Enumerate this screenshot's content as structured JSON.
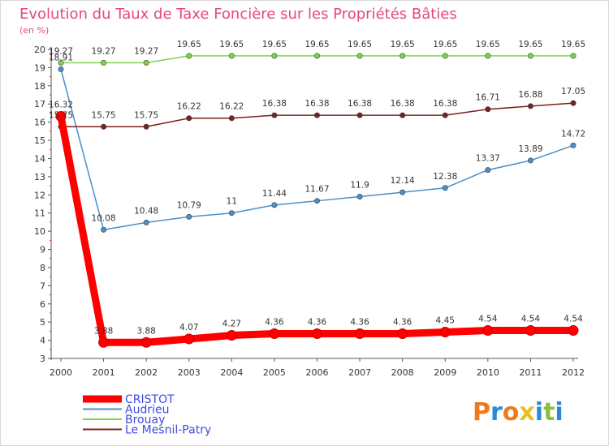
{
  "chart_data": {
    "type": "line",
    "title": "Evolution du Taux de Taxe Foncière sur les Propriétés Bâties",
    "unit_label": "(en %)",
    "xlabel": "",
    "ylabel": "",
    "x": [
      "2000",
      "2001",
      "2002",
      "2003",
      "2004",
      "2005",
      "2006",
      "2007",
      "2008",
      "2009",
      "2010",
      "2011",
      "2012"
    ],
    "ylim": [
      3,
      20
    ],
    "yticks": [
      3,
      4,
      5,
      6,
      7,
      8,
      9,
      10,
      11,
      12,
      13,
      14,
      15,
      16,
      17,
      18,
      19,
      20
    ],
    "grid": false,
    "legend_position": "bottom-left",
    "series": [
      {
        "name": "CRISTOT",
        "color": "#ff0000",
        "values": [
          16.32,
          3.88,
          3.88,
          4.07,
          4.27,
          4.36,
          4.36,
          4.36,
          4.36,
          4.45,
          4.54,
          4.54,
          4.54
        ],
        "labels": [
          "16.32",
          "3.88",
          "3.88",
          "4.07",
          "4.27",
          "4.36",
          "4.36",
          "4.36",
          "4.36",
          "4.45",
          "4.54",
          "4.54",
          "4.54"
        ]
      },
      {
        "name": "Audrieu",
        "color": "#4a8fc8",
        "values": [
          18.91,
          10.08,
          10.48,
          10.79,
          11,
          11.44,
          11.67,
          11.9,
          12.14,
          12.38,
          13.37,
          13.89,
          14.72
        ],
        "labels": [
          "18.91",
          "10.08",
          "10.48",
          "10.79",
          "11",
          "11.44",
          "11.67",
          "11.9",
          "12.14",
          "12.38",
          "13.37",
          "13.89",
          "14.72"
        ]
      },
      {
        "name": "Brouay",
        "color": "#7ed34a",
        "values": [
          19.27,
          19.27,
          19.27,
          19.65,
          19.65,
          19.65,
          19.65,
          19.65,
          19.65,
          19.65,
          19.65,
          19.65,
          19.65
        ],
        "labels": [
          "19.27",
          "19.27",
          "19.27",
          "19.65",
          "19.65",
          "19.65",
          "19.65",
          "19.65",
          "19.65",
          "19.65",
          "19.65",
          "19.65",
          "19.65"
        ]
      },
      {
        "name": "Le Mesnil-Patry",
        "color": "#7a2020",
        "values": [
          15.75,
          15.75,
          15.75,
          16.22,
          16.22,
          16.38,
          16.38,
          16.38,
          16.38,
          16.38,
          16.71,
          16.88,
          17.05
        ],
        "labels": [
          "15.75",
          "15.75",
          "15.75",
          "16.22",
          "16.22",
          "16.38",
          "16.38",
          "16.38",
          "16.38",
          "16.38",
          "16.71",
          "16.88",
          "17.05"
        ]
      }
    ]
  },
  "logo": {
    "text": "Proxiti",
    "letter_colors": [
      "#f07a1a",
      "#2a8ad8",
      "#f07a1a",
      "#e8c020",
      "#2a8ad8",
      "#8ac040",
      "#2a8ad8"
    ]
  }
}
